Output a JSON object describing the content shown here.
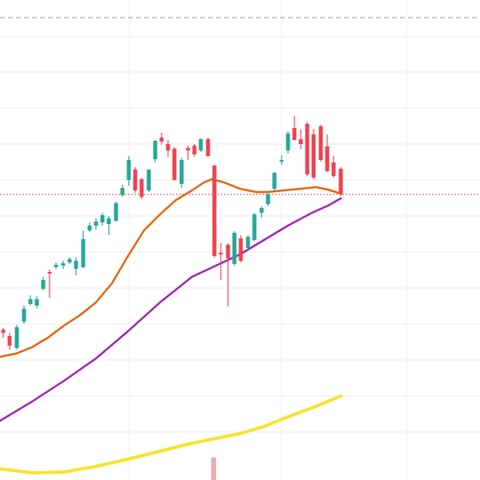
{
  "chart_data": {
    "type": "candlestick",
    "title": "",
    "xlabel": "",
    "ylabel": "",
    "ylim": [
      0,
      600
    ],
    "grid": true,
    "legend": "none",
    "colors": {
      "up": "#26a69a",
      "down": "#ef4150",
      "ma_fast": "#e8620a",
      "ma_mid": "#9c27b0",
      "ma_slow": "#f5e42c",
      "grid": "#eeeeee",
      "price_line": "#ef4150",
      "top_line": "#999999",
      "volume_down": "#f4a8b0"
    },
    "last_price_level": 357,
    "top_reference_level": 578,
    "candles": [
      {
        "x": 4,
        "o": 188,
        "h": 190,
        "l": 178,
        "c": 184
      },
      {
        "x": 12,
        "o": 180,
        "h": 184,
        "l": 163,
        "c": 168
      },
      {
        "x": 21,
        "o": 165,
        "h": 194,
        "l": 163,
        "c": 191
      },
      {
        "x": 30,
        "o": 198,
        "h": 218,
        "l": 195,
        "c": 214
      },
      {
        "x": 38,
        "o": 220,
        "h": 231,
        "l": 218,
        "c": 226
      },
      {
        "x": 46,
        "o": 218,
        "h": 230,
        "l": 214,
        "c": 226
      },
      {
        "x": 54,
        "o": 239,
        "h": 254,
        "l": 237,
        "c": 250
      },
      {
        "x": 62,
        "o": 260,
        "h": 263,
        "l": 228,
        "c": 258
      },
      {
        "x": 70,
        "o": 266,
        "h": 272,
        "l": 264,
        "c": 269
      },
      {
        "x": 79,
        "o": 268,
        "h": 274,
        "l": 264,
        "c": 271
      },
      {
        "x": 87,
        "o": 272,
        "h": 279,
        "l": 270,
        "c": 276
      },
      {
        "x": 95,
        "o": 264,
        "h": 278,
        "l": 256,
        "c": 274
      },
      {
        "x": 104,
        "o": 266,
        "h": 312,
        "l": 265,
        "c": 301
      },
      {
        "x": 112,
        "o": 312,
        "h": 322,
        "l": 310,
        "c": 318
      },
      {
        "x": 120,
        "o": 318,
        "h": 327,
        "l": 313,
        "c": 323
      },
      {
        "x": 128,
        "o": 322,
        "h": 334,
        "l": 318,
        "c": 331
      },
      {
        "x": 136,
        "o": 320,
        "h": 330,
        "l": 306,
        "c": 327
      },
      {
        "x": 145,
        "o": 324,
        "h": 348,
        "l": 323,
        "c": 346
      },
      {
        "x": 153,
        "o": 356,
        "h": 369,
        "l": 354,
        "c": 365
      },
      {
        "x": 161,
        "o": 375,
        "h": 405,
        "l": 368,
        "c": 400
      },
      {
        "x": 169,
        "o": 388,
        "h": 391,
        "l": 359,
        "c": 362
      },
      {
        "x": 177,
        "o": 376,
        "h": 378,
        "l": 351,
        "c": 354
      },
      {
        "x": 186,
        "o": 362,
        "h": 388,
        "l": 360,
        "c": 388
      },
      {
        "x": 194,
        "o": 401,
        "h": 425,
        "l": 397,
        "c": 424
      },
      {
        "x": 202,
        "o": 428,
        "h": 434,
        "l": 419,
        "c": 423
      },
      {
        "x": 210,
        "o": 420,
        "h": 425,
        "l": 404,
        "c": 412
      },
      {
        "x": 218,
        "o": 414,
        "h": 416,
        "l": 374,
        "c": 375
      },
      {
        "x": 227,
        "o": 370,
        "h": 403,
        "l": 365,
        "c": 400
      },
      {
        "x": 235,
        "o": 415,
        "h": 418,
        "l": 400,
        "c": 412
      },
      {
        "x": 243,
        "o": 418,
        "h": 420,
        "l": 404,
        "c": 407
      },
      {
        "x": 251,
        "o": 412,
        "h": 427,
        "l": 410,
        "c": 426
      },
      {
        "x": 260,
        "o": 426,
        "h": 428,
        "l": 404,
        "c": 405
      },
      {
        "x": 268,
        "o": 393,
        "h": 394,
        "l": 278,
        "c": 280
      },
      {
        "x": 276,
        "o": 284,
        "h": 296,
        "l": 250,
        "c": 282
      },
      {
        "x": 285,
        "o": 294,
        "h": 296,
        "l": 217,
        "c": 277
      },
      {
        "x": 293,
        "o": 270,
        "h": 311,
        "l": 268,
        "c": 309
      },
      {
        "x": 301,
        "o": 302,
        "h": 306,
        "l": 272,
        "c": 274
      },
      {
        "x": 310,
        "o": 290,
        "h": 306,
        "l": 288,
        "c": 304
      },
      {
        "x": 318,
        "o": 300,
        "h": 334,
        "l": 298,
        "c": 332
      },
      {
        "x": 327,
        "o": 334,
        "h": 342,
        "l": 328,
        "c": 340
      },
      {
        "x": 335,
        "o": 345,
        "h": 360,
        "l": 342,
        "c": 357
      },
      {
        "x": 343,
        "o": 364,
        "h": 385,
        "l": 360,
        "c": 384
      },
      {
        "x": 352,
        "o": 398,
        "h": 406,
        "l": 394,
        "c": 400
      },
      {
        "x": 360,
        "o": 412,
        "h": 436,
        "l": 408,
        "c": 433
      },
      {
        "x": 368,
        "o": 440,
        "h": 455,
        "l": 430,
        "c": 425
      },
      {
        "x": 376,
        "o": 426,
        "h": 438,
        "l": 414,
        "c": 420
      },
      {
        "x": 384,
        "o": 445,
        "h": 448,
        "l": 380,
        "c": 382
      },
      {
        "x": 392,
        "o": 432,
        "h": 439,
        "l": 376,
        "c": 378
      },
      {
        "x": 401,
        "o": 442,
        "h": 444,
        "l": 398,
        "c": 400
      },
      {
        "x": 409,
        "o": 417,
        "h": 432,
        "l": 385,
        "c": 386
      },
      {
        "x": 417,
        "o": 397,
        "h": 405,
        "l": 378,
        "c": 380
      },
      {
        "x": 426,
        "o": 389,
        "h": 391,
        "l": 355,
        "c": 357
      }
    ],
    "series": [
      {
        "key": "ma_fast",
        "points": [
          [
            0,
            154
          ],
          [
            20,
            158
          ],
          [
            40,
            166
          ],
          [
            60,
            178
          ],
          [
            80,
            193
          ],
          [
            100,
            206
          ],
          [
            120,
            222
          ],
          [
            140,
            246
          ],
          [
            160,
            280
          ],
          [
            180,
            312
          ],
          [
            200,
            332
          ],
          [
            220,
            350
          ],
          [
            240,
            362
          ],
          [
            255,
            372
          ],
          [
            265,
            376
          ],
          [
            280,
            372
          ],
          [
            300,
            364
          ],
          [
            320,
            360
          ],
          [
            335,
            360
          ],
          [
            355,
            362
          ],
          [
            375,
            364
          ],
          [
            395,
            366
          ],
          [
            410,
            363
          ],
          [
            426,
            358
          ]
        ]
      },
      {
        "key": "ma_mid",
        "points": [
          [
            0,
            74
          ],
          [
            40,
            98
          ],
          [
            80,
            124
          ],
          [
            120,
            152
          ],
          [
            160,
            186
          ],
          [
            200,
            222
          ],
          [
            240,
            254
          ],
          [
            270,
            268
          ],
          [
            300,
            282
          ],
          [
            330,
            300
          ],
          [
            360,
            318
          ],
          [
            390,
            334
          ],
          [
            410,
            343
          ],
          [
            426,
            352
          ]
        ]
      },
      {
        "key": "ma_slow",
        "points": [
          [
            0,
            14
          ],
          [
            40,
            9
          ],
          [
            80,
            10
          ],
          [
            120,
            17
          ],
          [
            160,
            26
          ],
          [
            200,
            36
          ],
          [
            240,
            46
          ],
          [
            270,
            52
          ],
          [
            300,
            58
          ],
          [
            330,
            67
          ],
          [
            360,
            79
          ],
          [
            395,
            92
          ],
          [
            426,
            105
          ]
        ]
      }
    ],
    "volume_bars": [
      {
        "x": 267,
        "value": 28
      }
    ]
  }
}
